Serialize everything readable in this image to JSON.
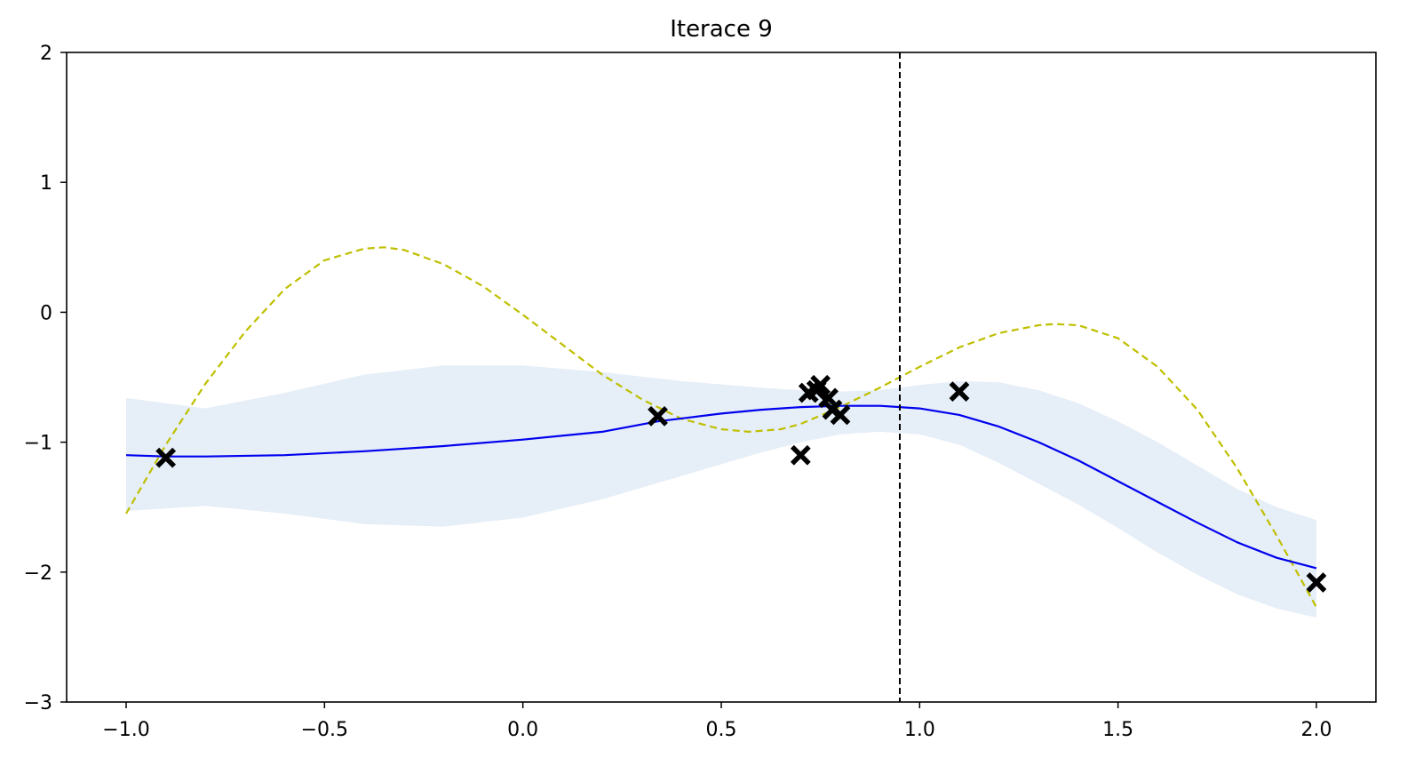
{
  "chart_data": {
    "type": "line",
    "title": "Iterace 9",
    "xlabel": "",
    "ylabel": "",
    "xlim": [
      -1.15,
      2.15
    ],
    "ylim": [
      -3,
      2
    ],
    "x_ticks": [
      -1.0,
      -0.5,
      0.0,
      0.5,
      1.0,
      1.5,
      2.0
    ],
    "x_tick_labels": [
      "−1.0",
      "−0.5",
      "0.0",
      "0.5",
      "1.0",
      "1.5",
      "2.0"
    ],
    "y_ticks": [
      -3,
      -2,
      -1,
      0,
      1,
      2
    ],
    "y_tick_labels": [
      "−3",
      "−2",
      "−1",
      "0",
      "1",
      "2"
    ],
    "grid": false,
    "series": [
      {
        "kind": "dashed-line",
        "color": "#bfbf00",
        "x": [
          -1.0,
          -0.9,
          -0.8,
          -0.7,
          -0.6,
          -0.5,
          -0.4,
          -0.35,
          -0.3,
          -0.2,
          -0.1,
          0.0,
          0.1,
          0.2,
          0.3,
          0.4,
          0.5,
          0.57,
          0.65,
          0.7,
          0.8,
          0.9,
          1.0,
          1.1,
          1.2,
          1.3,
          1.34,
          1.4,
          1.5,
          1.6,
          1.7,
          1.8,
          1.9,
          2.0
        ],
        "y": [
          -1.55,
          -1.02,
          -0.55,
          -0.15,
          0.18,
          0.4,
          0.49,
          0.5,
          0.48,
          0.37,
          0.2,
          -0.02,
          -0.25,
          -0.48,
          -0.67,
          -0.82,
          -0.9,
          -0.92,
          -0.9,
          -0.86,
          -0.73,
          -0.58,
          -0.42,
          -0.27,
          -0.16,
          -0.1,
          -0.09,
          -0.1,
          -0.2,
          -0.42,
          -0.75,
          -1.2,
          -1.72,
          -2.27
        ]
      },
      {
        "kind": "line",
        "color": "#0000ee",
        "x": [
          -1.0,
          -0.9,
          -0.8,
          -0.6,
          -0.4,
          -0.2,
          0.0,
          0.2,
          0.34,
          0.5,
          0.6,
          0.7,
          0.8,
          0.9,
          1.0,
          1.1,
          1.2,
          1.3,
          1.4,
          1.5,
          1.6,
          1.7,
          1.8,
          1.9,
          2.0
        ],
        "y": [
          -1.1,
          -1.11,
          -1.11,
          -1.1,
          -1.07,
          -1.03,
          -0.98,
          -0.92,
          -0.84,
          -0.78,
          -0.75,
          -0.73,
          -0.72,
          -0.72,
          -0.74,
          -0.79,
          -0.88,
          -1.0,
          -1.14,
          -1.3,
          -1.46,
          -1.62,
          -1.77,
          -1.89,
          -1.97
        ]
      }
    ],
    "band": {
      "color": "#e6eef7",
      "x": [
        -1.0,
        -0.8,
        -0.6,
        -0.4,
        -0.2,
        0.0,
        0.2,
        0.4,
        0.6,
        0.7,
        0.8,
        0.9,
        1.0,
        1.1,
        1.2,
        1.3,
        1.4,
        1.5,
        1.6,
        1.7,
        1.8,
        1.9,
        2.0
      ],
      "lower": [
        -1.53,
        -1.49,
        -1.55,
        -1.63,
        -1.65,
        -1.58,
        -1.44,
        -1.26,
        -1.08,
        -1.0,
        -0.94,
        -0.92,
        -0.94,
        -1.02,
        -1.16,
        -1.32,
        -1.48,
        -1.66,
        -1.85,
        -2.02,
        -2.17,
        -2.28,
        -2.35
      ],
      "upper": [
        -0.66,
        -0.74,
        -0.62,
        -0.48,
        -0.41,
        -0.41,
        -0.46,
        -0.53,
        -0.58,
        -0.6,
        -0.61,
        -0.6,
        -0.56,
        -0.53,
        -0.54,
        -0.6,
        -0.7,
        -0.84,
        -1.0,
        -1.18,
        -1.36,
        -1.5,
        -1.6
      ]
    },
    "points": {
      "marker": "X",
      "color": "#000000",
      "x": [
        -0.9,
        0.34,
        0.7,
        0.72,
        0.74,
        0.75,
        0.77,
        0.78,
        0.8,
        1.1,
        2.0
      ],
      "y": [
        -1.12,
        -0.8,
        -1.1,
        -0.62,
        -0.6,
        -0.56,
        -0.66,
        -0.75,
        -0.79,
        -0.61,
        -2.08
      ]
    },
    "vline": {
      "x": 0.95,
      "color": "#000000",
      "style": "dashed"
    }
  }
}
